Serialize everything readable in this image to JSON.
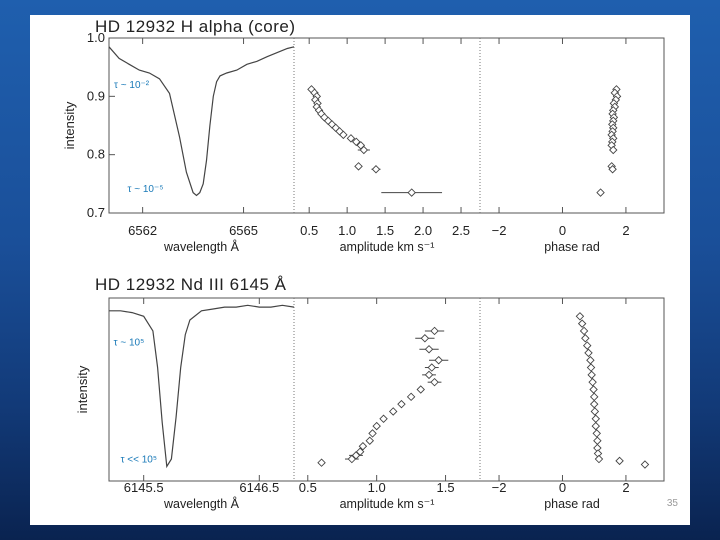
{
  "slide_number": "35",
  "chart_data": [
    {
      "type": "line",
      "title": "HD 12932 H alpha (core)",
      "xlabel": "wavelength Å",
      "ylabel": "intensity",
      "xlim": [
        6561.0,
        6566.5
      ],
      "ylim": [
        0.7,
        1.0
      ],
      "xticks": [
        6562,
        6565
      ],
      "xtick_labels": [
        "6562",
        "6565"
      ],
      "yticks": [
        0.7,
        0.8,
        0.9,
        1.0
      ],
      "ytick_labels": [
        "0.7",
        "0.8",
        "0.9",
        "1.0"
      ],
      "series": [
        {
          "x": [
            6561.0,
            6561.3,
            6561.6,
            6561.9,
            6562.2,
            6562.5,
            6562.8,
            6563.1,
            6563.3,
            6563.5,
            6563.6,
            6563.7,
            6563.8,
            6563.9,
            6564.0,
            6564.1,
            6564.2,
            6564.3,
            6564.5,
            6564.8,
            6565.1,
            6565.4,
            6565.7,
            6566.0,
            6566.3,
            6566.5
          ],
          "values": [
            0.985,
            0.965,
            0.955,
            0.945,
            0.94,
            0.93,
            0.905,
            0.83,
            0.77,
            0.735,
            0.73,
            0.735,
            0.75,
            0.79,
            0.85,
            0.9,
            0.925,
            0.935,
            0.94,
            0.945,
            0.955,
            0.96,
            0.968,
            0.975,
            0.982,
            0.985
          ]
        }
      ],
      "annotations": [
        {
          "text": "τ ~ 10⁻²",
          "x": 6561.15,
          "y": 0.914
        },
        {
          "text": "τ ~ 10⁻⁵",
          "x": 6561.55,
          "y": 0.736
        }
      ]
    },
    {
      "type": "scatter",
      "xlabel": "amplitude km s⁻¹",
      "xlim": [
        0.3,
        2.75
      ],
      "ylim": [
        0.7,
        1.0
      ],
      "xticks": [
        0.5,
        1.0,
        1.5,
        2.0,
        2.5
      ],
      "xtick_labels": [
        "0.5",
        "1.0",
        "1.5",
        "2.0",
        "2.5"
      ],
      "x": [
        0.53,
        0.57,
        0.6,
        0.58,
        0.61,
        0.6,
        0.63,
        0.66,
        0.7,
        0.75,
        0.8,
        0.85,
        0.9,
        0.95,
        1.05,
        1.12,
        1.18,
        1.22,
        1.15,
        1.38,
        1.85
      ],
      "y": [
        0.912,
        0.906,
        0.9,
        0.894,
        0.888,
        0.882,
        0.876,
        0.87,
        0.864,
        0.858,
        0.852,
        0.846,
        0.84,
        0.834,
        0.828,
        0.822,
        0.816,
        0.808,
        0.78,
        0.775,
        0.735
      ],
      "xerr": [
        0,
        0,
        0,
        0,
        0,
        0,
        0,
        0,
        0,
        0,
        0,
        0,
        0,
        0,
        0,
        0.05,
        0.05,
        0.08,
        0.05,
        0.06,
        0.4
      ]
    },
    {
      "type": "scatter",
      "xlabel": "phase rad",
      "xlim": [
        -2.6,
        3.2
      ],
      "ylim": [
        0.7,
        1.0
      ],
      "xticks": [
        -2,
        0,
        2
      ],
      "xtick_labels": [
        "−2",
        "0",
        "2"
      ],
      "x": [
        1.7,
        1.65,
        1.72,
        1.68,
        1.62,
        1.65,
        1.6,
        1.58,
        1.62,
        1.6,
        1.57,
        1.6,
        1.58,
        1.55,
        1.6,
        1.57,
        1.55,
        1.6,
        1.55,
        1.58,
        1.2
      ],
      "y": [
        0.912,
        0.906,
        0.9,
        0.894,
        0.888,
        0.882,
        0.876,
        0.87,
        0.864,
        0.858,
        0.852,
        0.846,
        0.84,
        0.834,
        0.828,
        0.822,
        0.816,
        0.808,
        0.78,
        0.775,
        0.735
      ]
    },
    {
      "type": "line",
      "title": "HD 12932 Nd III 6145 Å",
      "xlabel": "wavelength Å",
      "ylabel": "intensity",
      "xlim": [
        6145.2,
        6146.8
      ],
      "ylim": [
        0.0,
        1.0
      ],
      "xticks": [
        6145.5,
        6146.5
      ],
      "xtick_labels": [
        "6145.5",
        "6146.5"
      ],
      "series": [
        {
          "x": [
            6145.2,
            6145.3,
            6145.4,
            6145.5,
            6145.58,
            6145.62,
            6145.66,
            6145.7,
            6145.74,
            6145.78,
            6145.82,
            6145.86,
            6145.9,
            6146.0,
            6146.1,
            6146.2,
            6146.3,
            6146.4,
            6146.5,
            6146.6,
            6146.7,
            6146.8
          ],
          "values": [
            0.93,
            0.93,
            0.92,
            0.9,
            0.82,
            0.62,
            0.32,
            0.08,
            0.12,
            0.35,
            0.62,
            0.8,
            0.88,
            0.93,
            0.94,
            0.95,
            0.95,
            0.96,
            0.95,
            0.95,
            0.96,
            0.95
          ]
        }
      ],
      "annotations": [
        {
          "text": "τ ~ 10⁵",
          "x": 6145.24,
          "y": 0.74
        },
        {
          "text": "τ << 10⁵",
          "x": 6145.3,
          "y": 0.1
        }
      ]
    },
    {
      "type": "scatter",
      "xlabel": "amplitude km s⁻¹",
      "xlim": [
        0.4,
        1.75
      ],
      "ylim": [
        0.0,
        1.0
      ],
      "xticks": [
        0.5,
        1.0,
        1.5
      ],
      "xtick_labels": [
        "0.5",
        "1.0",
        "1.5"
      ],
      "x": [
        1.35,
        1.42,
        1.38,
        1.45,
        1.4,
        1.38,
        1.42,
        1.32,
        1.25,
        1.18,
        1.12,
        1.05,
        1.0,
        0.97,
        0.95,
        0.9,
        0.88,
        0.85,
        0.82,
        0.6
      ],
      "y": [
        0.78,
        0.82,
        0.72,
        0.66,
        0.62,
        0.58,
        0.54,
        0.5,
        0.46,
        0.42,
        0.38,
        0.34,
        0.3,
        0.26,
        0.22,
        0.19,
        0.16,
        0.14,
        0.12,
        0.1
      ],
      "xerr": [
        0.07,
        0.07,
        0.07,
        0.07,
        0.05,
        0.05,
        0.05,
        0,
        0,
        0,
        0,
        0,
        0,
        0,
        0,
        0,
        0,
        0.05,
        0.05,
        0
      ]
    },
    {
      "type": "scatter",
      "xlabel": "phase rad",
      "xlim": [
        -2.6,
        3.2
      ],
      "ylim": [
        0.0,
        1.0
      ],
      "xticks": [
        -2,
        0,
        2
      ],
      "xtick_labels": [
        "−2",
        "0",
        "2"
      ],
      "x": [
        0.55,
        0.62,
        0.68,
        0.72,
        0.78,
        0.82,
        0.88,
        0.9,
        0.92,
        0.95,
        0.98,
        1.0,
        1.0,
        1.02,
        1.05,
        1.05,
        1.08,
        1.1,
        1.1,
        1.12,
        1.15,
        1.8,
        2.6
      ],
      "y": [
        0.9,
        0.86,
        0.82,
        0.78,
        0.74,
        0.7,
        0.66,
        0.62,
        0.58,
        0.54,
        0.5,
        0.46,
        0.42,
        0.38,
        0.34,
        0.3,
        0.26,
        0.22,
        0.18,
        0.15,
        0.12,
        0.11,
        0.09
      ]
    }
  ]
}
